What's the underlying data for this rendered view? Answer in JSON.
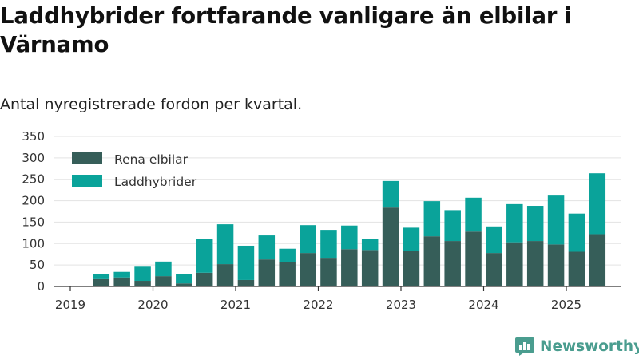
{
  "title": "Laddhybrider fortfarande vanligare än elbilar i Värnamo",
  "subtitle": "Antal nyregistrerade fordon per kvartal.",
  "brand": {
    "name": "Newsworthy",
    "icon": "chart-bubble-logo-icon",
    "color": "#4a9d8f"
  },
  "colors": {
    "Rena elbilar": "#365e59",
    "Laddhybrider": "#0aa39a",
    "grid": "#e3e3e3",
    "axis": "#333333"
  },
  "chart_data": {
    "type": "bar",
    "stacked": true,
    "title": "Laddhybrider fortfarande vanligare än elbilar i Värnamo",
    "subtitle": "Antal nyregistrerade fordon per kvartal.",
    "xlabel": "",
    "ylabel": "",
    "ylim": [
      0,
      350
    ],
    "yticks": [
      0,
      50,
      100,
      150,
      200,
      250,
      300,
      350
    ],
    "xticks": [
      "2019",
      "2020",
      "2021",
      "2022",
      "2023",
      "2024",
      "2025"
    ],
    "grid": true,
    "legend_position": "top-left",
    "categories": [
      "2019-Q2",
      "2019-Q3",
      "2019-Q4",
      "2020-Q1",
      "2020-Q2",
      "2020-Q3",
      "2020-Q4",
      "2021-Q1",
      "2021-Q2",
      "2021-Q3",
      "2021-Q4",
      "2022-Q1",
      "2022-Q2",
      "2022-Q3",
      "2022-Q4",
      "2023-Q1",
      "2023-Q2",
      "2023-Q3",
      "2023-Q4",
      "2024-Q1",
      "2024-Q2",
      "2024-Q3",
      "2024-Q4",
      "2025-Q1",
      "2025-Q2"
    ],
    "series": [
      {
        "name": "Rena elbilar",
        "values": [
          17,
          21,
          13,
          24,
          7,
          32,
          52,
          15,
          63,
          56,
          78,
          65,
          87,
          85,
          184,
          83,
          117,
          106,
          128,
          78,
          103,
          106,
          98,
          81,
          122
        ]
      },
      {
        "name": "Laddhybrider",
        "values": [
          11,
          13,
          33,
          34,
          21,
          78,
          93,
          80,
          56,
          32,
          65,
          67,
          55,
          26,
          62,
          54,
          82,
          72,
          79,
          62,
          89,
          82,
          114,
          89,
          142
        ]
      }
    ]
  }
}
